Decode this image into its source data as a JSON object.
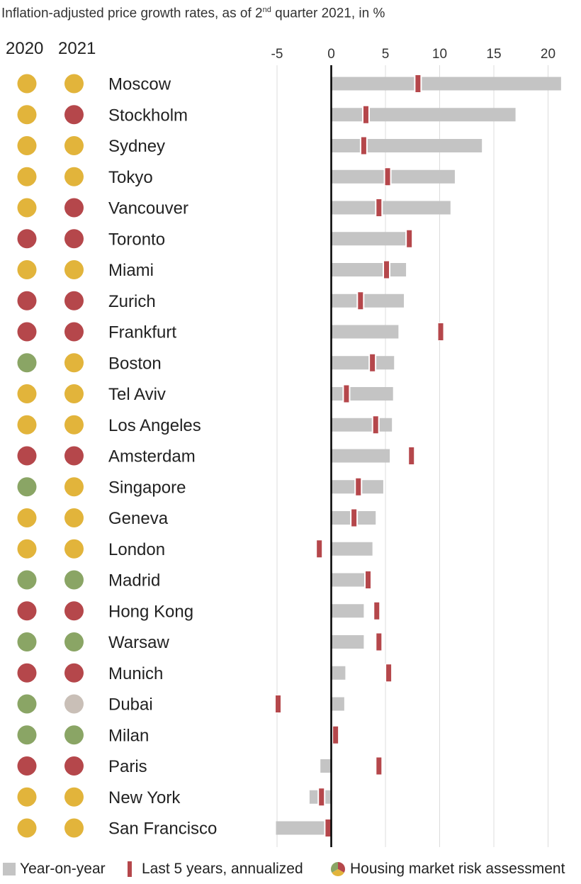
{
  "title_main": "Inflation-adjusted price growth rates, as of 2",
  "title_sup": "nd",
  "title_rest": " quarter 2021, in %",
  "year_headers": [
    "2020",
    "2021"
  ],
  "colors": {
    "yellow": "#e2b43b",
    "red": "#b5474b",
    "green": "#8aa565",
    "gray": "#c9bfb7",
    "bar": "#c4c4c4",
    "marker": "#b5474b"
  },
  "legend": {
    "yoy": "Year-on-year",
    "five_year": "Last 5 years, annualized",
    "risk": "Housing market risk assessment"
  },
  "chart_data": {
    "type": "bar",
    "orientation": "horizontal",
    "title": "Inflation-adjusted price growth rates, as of 2nd quarter 2021, in %",
    "x_ticks": [
      -5,
      0,
      5,
      10,
      15,
      20
    ],
    "xlim": [
      -5,
      21
    ],
    "grid": true,
    "legend_position": "bottom",
    "categories": [
      "Moscow",
      "Stockholm",
      "Sydney",
      "Tokyo",
      "Vancouver",
      "Toronto",
      "Miami",
      "Zurich",
      "Frankfurt",
      "Boston",
      "Tel Aviv",
      "Los Angeles",
      "Amsterdam",
      "Singapore",
      "Geneva",
      "London",
      "Madrid",
      "Hong Kong",
      "Warsaw",
      "Munich",
      "Dubai",
      "Milan",
      "Paris",
      "New York",
      "San Francisco"
    ],
    "series": [
      {
        "name": "Year-on-year",
        "values": [
          21.2,
          17.0,
          13.9,
          11.4,
          11.0,
          7.5,
          6.9,
          6.7,
          6.2,
          5.8,
          5.7,
          5.6,
          5.4,
          4.8,
          4.1,
          3.8,
          3.3,
          3.0,
          3.0,
          1.3,
          1.2,
          0.3,
          -1.0,
          -2.0,
          -5.1
        ]
      },
      {
        "name": "Last 5 years, annualized",
        "values": [
          8.0,
          3.2,
          3.0,
          5.2,
          4.4,
          7.2,
          5.1,
          2.7,
          10.1,
          3.8,
          1.4,
          4.1,
          7.4,
          2.5,
          2.1,
          -1.1,
          3.4,
          4.2,
          4.4,
          5.3,
          -4.9,
          0.4,
          4.4,
          -0.9,
          -0.3
        ]
      }
    ],
    "risk_2020": [
      "yellow",
      "yellow",
      "yellow",
      "yellow",
      "yellow",
      "red",
      "yellow",
      "red",
      "red",
      "green",
      "yellow",
      "yellow",
      "red",
      "green",
      "yellow",
      "yellow",
      "green",
      "red",
      "green",
      "red",
      "green",
      "green",
      "red",
      "yellow",
      "yellow"
    ],
    "risk_2021": [
      "yellow",
      "red",
      "yellow",
      "yellow",
      "red",
      "red",
      "yellow",
      "red",
      "red",
      "yellow",
      "yellow",
      "yellow",
      "red",
      "yellow",
      "yellow",
      "yellow",
      "green",
      "red",
      "green",
      "red",
      "gray",
      "green",
      "red",
      "yellow",
      "yellow"
    ]
  }
}
